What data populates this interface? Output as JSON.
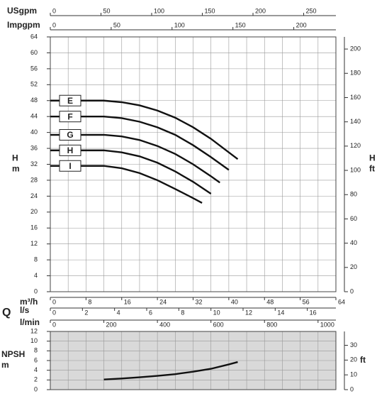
{
  "chart_data": [
    {
      "type": "line",
      "x_label": "m³/h",
      "y_label": "H",
      "y_unit": "m",
      "y2_label": "H",
      "y2_unit": "ft",
      "flow_symbol": "Q",
      "xlim": [
        0,
        64
      ],
      "xticks": [
        0,
        8,
        16,
        24,
        32,
        40,
        48,
        56,
        64
      ],
      "xgrid": [
        0,
        4,
        8,
        12,
        16,
        20,
        24,
        28,
        32,
        36,
        40,
        44,
        48,
        52,
        56,
        60,
        64
      ],
      "ylim": [
        0,
        64
      ],
      "yticks": [
        0,
        4,
        8,
        12,
        16,
        20,
        24,
        28,
        32,
        36,
        40,
        44,
        48,
        52,
        56,
        60,
        64
      ],
      "y2lim": [
        0,
        210
      ],
      "y2ticks": [
        0,
        20,
        40,
        60,
        80,
        100,
        120,
        140,
        160,
        180,
        200
      ],
      "grid": true,
      "top_scales": [
        {
          "label": "USgpm",
          "xlim": [
            0,
            281.8
          ],
          "xticks": [
            0,
            50,
            100,
            150,
            200,
            250
          ]
        },
        {
          "label": "Impgpm",
          "xlim": [
            0,
            234.6
          ],
          "xticks": [
            0,
            50,
            100,
            150,
            200
          ]
        }
      ],
      "bottom_scales": [
        {
          "label": "l/s",
          "xlim": [
            0,
            17.78
          ],
          "xticks": [
            0,
            2,
            4,
            6,
            8,
            10,
            12,
            14,
            16
          ]
        },
        {
          "label": "l/min",
          "xlim": [
            0,
            1066.7
          ],
          "xticks": [
            0,
            200,
            400,
            600,
            800,
            1000
          ]
        }
      ],
      "series": [
        {
          "name": "E",
          "color": "#111111",
          "x": [
            0,
            12,
            16,
            20,
            24,
            28,
            32,
            36,
            40,
            42
          ],
          "values": [
            48,
            48,
            47.6,
            46.8,
            45.5,
            43.7,
            41.3,
            38.4,
            35,
            33.3
          ]
        },
        {
          "name": "F",
          "color": "#111111",
          "x": [
            0,
            12,
            16,
            20,
            24,
            28,
            32,
            36,
            40
          ],
          "values": [
            44,
            44,
            43.6,
            42.7,
            41.3,
            39.4,
            36.8,
            33.8,
            30.6
          ]
        },
        {
          "name": "G",
          "color": "#111111",
          "x": [
            0,
            12,
            16,
            20,
            24,
            28,
            32,
            36,
            38
          ],
          "values": [
            39.4,
            39.4,
            39,
            38.1,
            36.6,
            34.6,
            32,
            29,
            27.4
          ]
        },
        {
          "name": "H",
          "color": "#111111",
          "x": [
            0,
            12,
            16,
            20,
            24,
            28,
            32,
            36
          ],
          "values": [
            35.5,
            35.5,
            35,
            34,
            32.4,
            30.2,
            27.6,
            24.6
          ]
        },
        {
          "name": "I",
          "color": "#111111",
          "x": [
            0,
            12,
            16,
            20,
            24,
            28,
            32,
            34
          ],
          "values": [
            31.6,
            31.6,
            31,
            29.8,
            28,
            25.8,
            23.5,
            22.3
          ]
        }
      ]
    },
    {
      "type": "line",
      "y_label": "NPSH",
      "y_unit": "m",
      "y2_unit": "ft",
      "background": "#d9d9d9",
      "xlim": [
        0,
        64
      ],
      "xgrid": [
        0,
        4,
        8,
        12,
        16,
        20,
        24,
        28,
        32,
        36,
        40,
        44,
        48,
        52,
        56,
        60,
        64
      ],
      "ylim": [
        0,
        12
      ],
      "yticks": [
        0,
        2,
        4,
        6,
        8,
        10,
        12
      ],
      "y2lim": [
        0,
        39.37
      ],
      "y2ticks": [
        0,
        10,
        20,
        30
      ],
      "grid": true,
      "series": [
        {
          "color": "#111111",
          "x": [
            12,
            16,
            20,
            24,
            28,
            32,
            36,
            40,
            42
          ],
          "values": [
            2.1,
            2.3,
            2.55,
            2.85,
            3.2,
            3.7,
            4.3,
            5.2,
            5.7
          ]
        }
      ]
    }
  ]
}
